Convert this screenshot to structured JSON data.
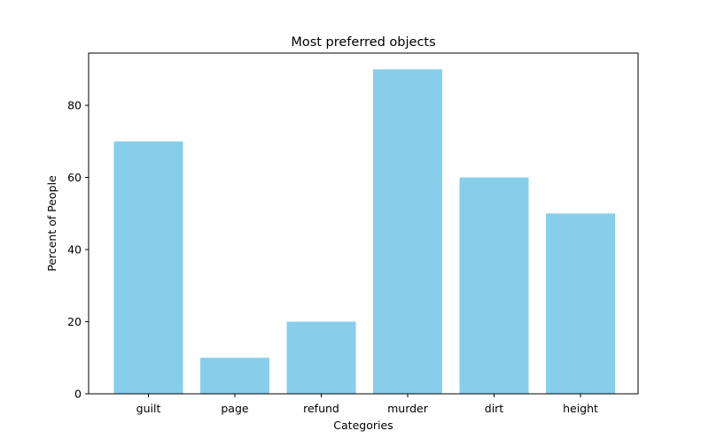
{
  "chart_data": {
    "type": "bar",
    "title": "Most preferred objects",
    "xlabel": "Categories",
    "ylabel": "Percent of People",
    "categories": [
      "guilt",
      "page",
      "refund",
      "murder",
      "dirt",
      "height"
    ],
    "values": [
      70,
      10,
      20,
      90,
      60,
      50
    ],
    "ylim": [
      0,
      94.5
    ],
    "yticks": [
      0,
      20,
      40,
      60,
      80
    ],
    "bar_color": "#87CEEB",
    "grid": false,
    "legend": "none"
  }
}
